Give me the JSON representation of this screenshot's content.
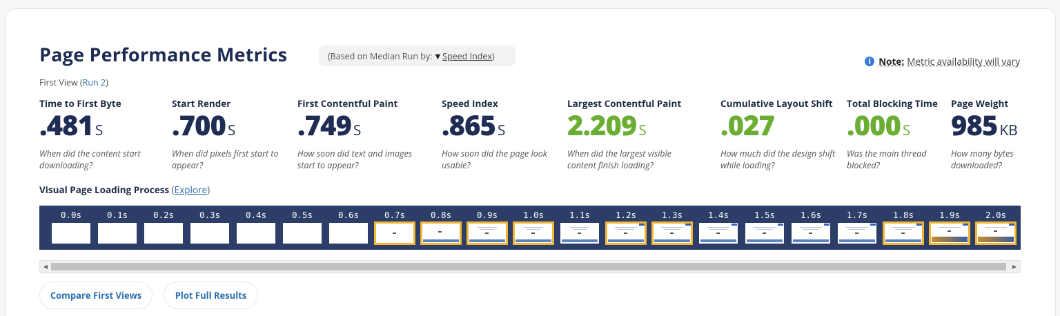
{
  "header": {
    "title": "Page Performance Metrics",
    "median_prefix": "(Based on Median Run by:",
    "median_arrow": "▼",
    "median_metric": "Speed Index",
    "median_suffix": ")",
    "note_label": "Note:",
    "note_text": "Metric availability will vary"
  },
  "first_view": {
    "prefix": "First View (",
    "run": "Run 2",
    "suffix": ")"
  },
  "metrics": [
    {
      "label": "Time to First Byte",
      "value": ".481",
      "unit": "S",
      "desc": "When did the content start downloading?",
      "status": "neutral"
    },
    {
      "label": "Start Render",
      "value": ".700",
      "unit": "S",
      "desc": "When did pixels first start to appear?",
      "status": "neutral"
    },
    {
      "label": "First Contentful Paint",
      "value": ".749",
      "unit": "S",
      "desc": "How soon did text and images start to appear?",
      "status": "neutral"
    },
    {
      "label": "Speed Index",
      "value": ".865",
      "unit": "S",
      "desc": "How soon did the page look usable?",
      "status": "neutral"
    },
    {
      "label": "Largest Contentful Paint",
      "value": "2.209",
      "unit": "S",
      "desc": "When did the largest visible content finish loading?",
      "status": "good"
    },
    {
      "label": "Cumulative Layout Shift",
      "value": ".027",
      "unit": "",
      "desc": "How much did the design shift while loading?",
      "status": "good"
    },
    {
      "label": "Total Blocking Time",
      "value": ".000",
      "unit": "S",
      "desc": "Was the main thread blocked?",
      "status": "good"
    },
    {
      "label": "Page Weight",
      "value": "985",
      "unit": "KB",
      "desc": "How many bytes downloaded?",
      "status": "neutral"
    }
  ],
  "visual": {
    "title": "Visual Page Loading Process",
    "open_paren": "(",
    "explore": "Explore",
    "close_paren": ")"
  },
  "filmstrip": [
    {
      "time": "0.0s",
      "state": "blank"
    },
    {
      "time": "0.1s",
      "state": "blank"
    },
    {
      "time": "0.2s",
      "state": "blank"
    },
    {
      "time": "0.3s",
      "state": "blank"
    },
    {
      "time": "0.4s",
      "state": "blank"
    },
    {
      "time": "0.5s",
      "state": "blank"
    },
    {
      "time": "0.6s",
      "state": "blank"
    },
    {
      "time": "0.7s",
      "state": "start",
      "changed": true
    },
    {
      "time": "0.8s",
      "state": "partial",
      "changed": true
    },
    {
      "time": "0.9s",
      "state": "content",
      "changed": true
    },
    {
      "time": "1.0s",
      "state": "content",
      "changed": true
    },
    {
      "time": "1.1s",
      "state": "content",
      "changed": false
    },
    {
      "time": "1.2s",
      "state": "full",
      "changed": true
    },
    {
      "time": "1.3s",
      "state": "full",
      "changed": true
    },
    {
      "time": "1.4s",
      "state": "full",
      "changed": false
    },
    {
      "time": "1.5s",
      "state": "full",
      "changed": false
    },
    {
      "time": "1.6s",
      "state": "full",
      "changed": false
    },
    {
      "time": "1.7s",
      "state": "full",
      "changed": false
    },
    {
      "time": "1.8s",
      "state": "full",
      "changed": true
    },
    {
      "time": "1.9s",
      "state": "hero",
      "changed": true
    },
    {
      "time": "2.0s",
      "state": "hero",
      "changed": true
    }
  ],
  "scroll": {
    "left_arrow": "◀",
    "right_arrow": "▶"
  },
  "buttons": {
    "compare": "Compare First Views",
    "plot": "Plot Full Results"
  },
  "colors": {
    "good": "#6bae34",
    "neutral": "#1f2d54",
    "filmstrip_bg": "#2c3e67",
    "frame_changed": "#f2b632",
    "link": "#2a6fb0"
  }
}
